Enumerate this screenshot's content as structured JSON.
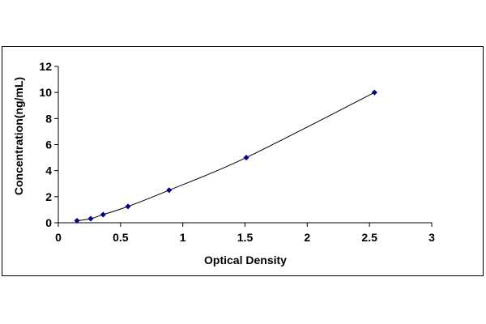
{
  "chart_data": {
    "type": "scatter",
    "title": "",
    "xlabel": "Optical Density",
    "ylabel": "Concentration(ng/mL)",
    "xlim": [
      0,
      3
    ],
    "ylim": [
      0,
      12
    ],
    "x_ticks": [
      "0",
      "0.5",
      "1",
      "1.5",
      "2",
      "2.5",
      "3"
    ],
    "y_ticks": [
      "0",
      "2",
      "4",
      "6",
      "8",
      "10",
      "12"
    ],
    "grid": false,
    "legend": "none",
    "marker_color": "#00008b",
    "line_color": "#000000",
    "series": [
      {
        "points": [
          {
            "x": 0.15,
            "y": 0.156
          },
          {
            "x": 0.26,
            "y": 0.313
          },
          {
            "x": 0.36,
            "y": 0.625
          },
          {
            "x": 0.56,
            "y": 1.25
          },
          {
            "x": 0.89,
            "y": 2.5
          },
          {
            "x": 1.51,
            "y": 5
          },
          {
            "x": 2.54,
            "y": 10
          }
        ]
      }
    ]
  }
}
